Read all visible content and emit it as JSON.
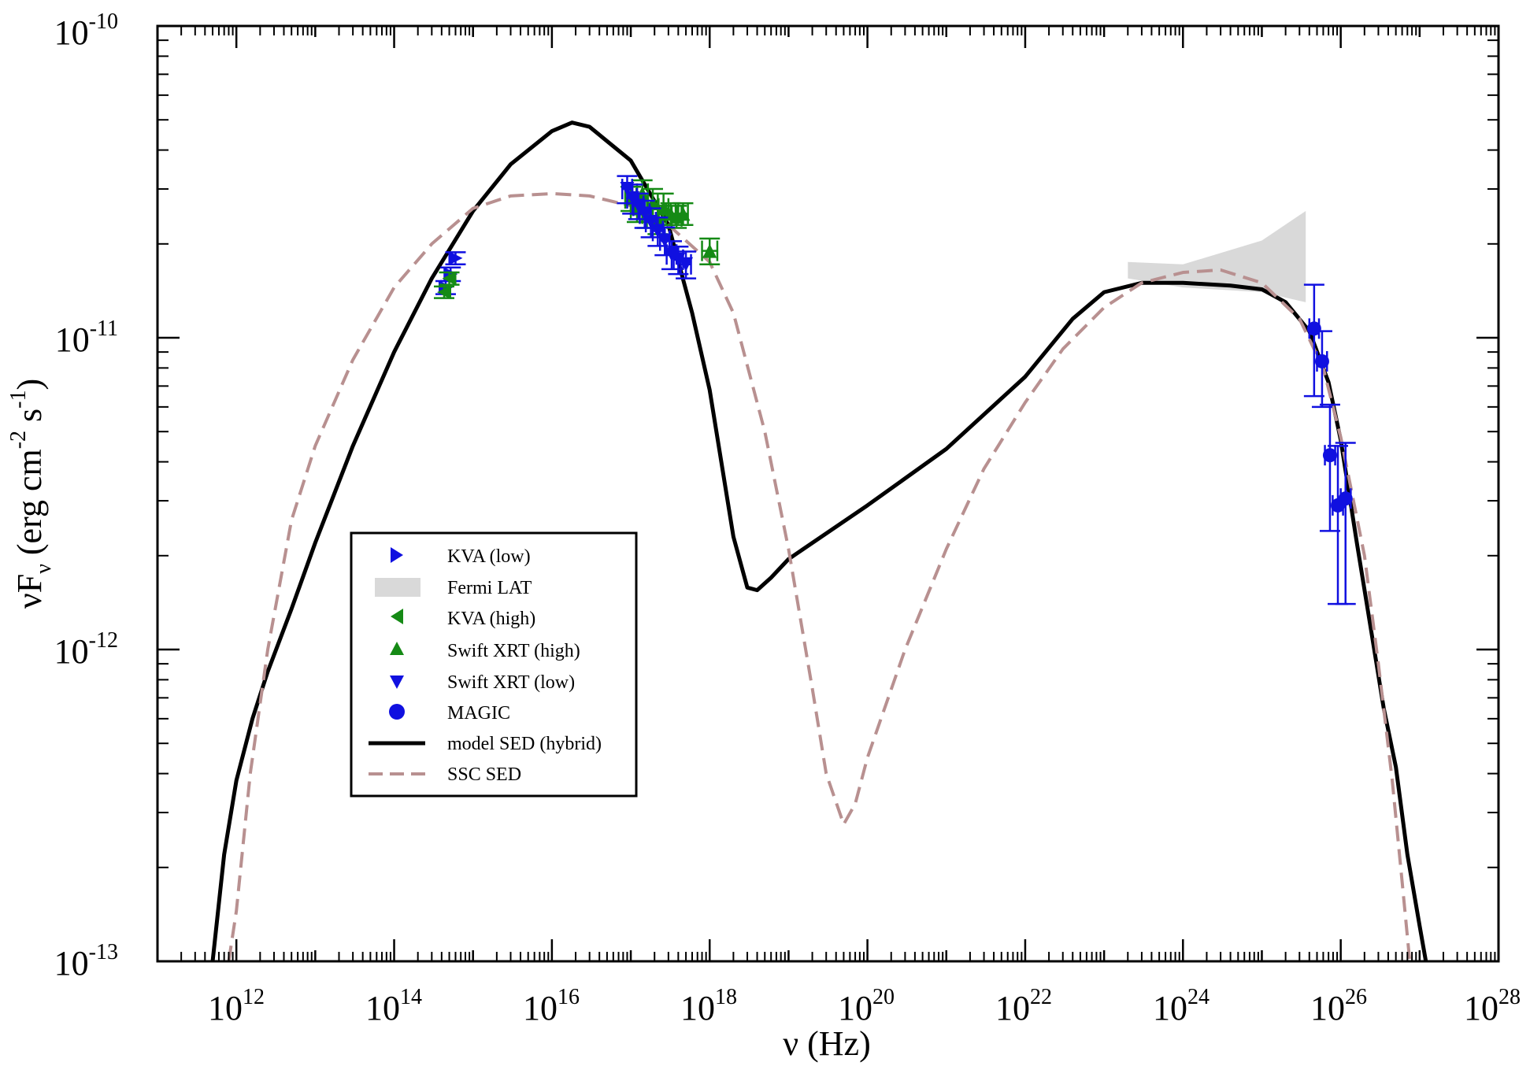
{
  "chart_data": {
    "type": "scatter",
    "xscale": "log",
    "yscale": "log",
    "xlabel": {
      "main": "ν (Hz)"
    },
    "ylabel": {
      "main": "νF",
      "sub": "ν",
      "rest": " (erg cm",
      "sup1": "-2",
      "mid": " s",
      "sup2": "-1",
      "end": ")"
    },
    "xlim": [
      100000000000.0,
      1e+28
    ],
    "ylim": [
      1e-13,
      1e-10
    ],
    "x_ticks": [
      {
        "value": 1000000000000.0,
        "base": "10",
        "exp": "12"
      },
      {
        "value": 100000000000000.0,
        "base": "10",
        "exp": "14"
      },
      {
        "value": 1e+16,
        "base": "10",
        "exp": "16"
      },
      {
        "value": 1e+18,
        "base": "10",
        "exp": "18"
      },
      {
        "value": 1e+20,
        "base": "10",
        "exp": "20"
      },
      {
        "value": 1e+22,
        "base": "10",
        "exp": "22"
      },
      {
        "value": 1e+24,
        "base": "10",
        "exp": "24"
      },
      {
        "value": 1e+26,
        "base": "10",
        "exp": "26"
      },
      {
        "value": 1e+28,
        "base": "10",
        "exp": "28"
      }
    ],
    "y_ticks": [
      {
        "value": 1e-13,
        "base": "10",
        "exp": "-13"
      },
      {
        "value": 1e-12,
        "base": "10",
        "exp": "-12"
      },
      {
        "value": 1e-11,
        "base": "10",
        "exp": "-11"
      },
      {
        "value": 1e-10,
        "base": "10",
        "exp": "-10"
      }
    ],
    "grid": false,
    "legend_position": "lower-left",
    "legend": [
      {
        "label": "KVA (low)",
        "symbol": "triangle-right",
        "color": "#1010e0"
      },
      {
        "label": "Fermi LAT",
        "symbol": "band",
        "color": "#d9d9d9"
      },
      {
        "label": "KVA (high)",
        "symbol": "triangle-left",
        "color": "#158a15"
      },
      {
        "label": "Swift XRT (high)",
        "symbol": "triangle-up",
        "color": "#158a15"
      },
      {
        "label": "Swift XRT (low)",
        "symbol": "triangle-down",
        "color": "#1010e0"
      },
      {
        "label": "MAGIC",
        "symbol": "circle",
        "color": "#1010e0"
      },
      {
        "label": "model SED (hybrid)",
        "symbol": "solid-line",
        "color": "#000000"
      },
      {
        "label": "SSC SED",
        "symbol": "dashed-line",
        "color": "#b89090"
      }
    ],
    "series": [
      {
        "name": "KVA (low)",
        "symbol": "triangle-right",
        "color": "#1010e0",
        "points": [
          {
            "x": 600000000000000.0,
            "y": 1.8e-11,
            "yerr": [
              1.72e-11,
              1.88e-11
            ]
          },
          {
            "x": 520000000000000.0,
            "y": 1.6e-11,
            "yerr": [
              1.52e-11,
              1.68e-11
            ]
          },
          {
            "x": 450000000000000.0,
            "y": 1.45e-11,
            "yerr": [
              1.38e-11,
              1.52e-11
            ]
          }
        ]
      },
      {
        "name": "KVA (high)",
        "symbol": "triangle-left",
        "color": "#158a15",
        "points": [
          {
            "x": 500000000000000.0,
            "y": 1.55e-11,
            "yerr": [
              1.48e-11,
              1.62e-11
            ]
          },
          {
            "x": 430000000000000.0,
            "y": 1.4e-11,
            "yerr": [
              1.34e-11,
              1.46e-11
            ]
          }
        ]
      },
      {
        "name": "Swift XRT (high)",
        "symbol": "triangle-up",
        "color": "#158a15",
        "points": [
          {
            "x": 1e+17,
            "y": 2.8e-11,
            "xerr": [
              8.5e+16,
              1.18e+17
            ],
            "yerr": [
              2.55e-11,
              3.05e-11
            ]
          },
          {
            "x": 1.2e+17,
            "y": 2.6e-11,
            "xerr": [
              1e+17,
              1.4e+17
            ],
            "yerr": [
              2.35e-11,
              2.85e-11
            ]
          },
          {
            "x": 1.4e+17,
            "y": 2.9e-11,
            "xerr": [
              1.2e+17,
              1.65e+17
            ],
            "yerr": [
              2.6e-11,
              3.2e-11
            ]
          },
          {
            "x": 1.6e+17,
            "y": 2.5e-11,
            "xerr": [
              1.4e+17,
              1.85e+17
            ],
            "yerr": [
              2.25e-11,
              2.75e-11
            ]
          },
          {
            "x": 1.9e+17,
            "y": 2.7e-11,
            "xerr": [
              1.65e+17,
              2.2e+17
            ],
            "yerr": [
              2.4e-11,
              3e-11
            ]
          },
          {
            "x": 2.2e+17,
            "y": 2.4e-11,
            "xerr": [
              1.9e+17,
              2.55e+17
            ],
            "yerr": [
              2.15e-11,
              2.65e-11
            ]
          },
          {
            "x": 2.6e+17,
            "y": 2.6e-11,
            "xerr": [
              2.25e+17,
              3e+17
            ],
            "yerr": [
              2.3e-11,
              2.9e-11
            ]
          },
          {
            "x": 3.2e+17,
            "y": 2.5e-11,
            "xerr": [
              2.8e+17,
              3.7e+17
            ],
            "yerr": [
              2.3e-11,
              2.7e-11
            ]
          },
          {
            "x": 3.8e+17,
            "y": 2.45e-11,
            "xerr": [
              3.3e+17,
              4.4e+17
            ],
            "yerr": [
              2.25e-11,
              2.65e-11
            ]
          },
          {
            "x": 4.6e+17,
            "y": 2.5e-11,
            "xerr": [
              4e+17,
              5.3e+17
            ],
            "yerr": [
              2.3e-11,
              2.7e-11
            ]
          },
          {
            "x": 1e+18,
            "y": 1.9e-11,
            "xerr": [
              8e+17,
              1.25e+18
            ],
            "yerr": [
              1.72e-11,
              2.08e-11
            ]
          }
        ]
      },
      {
        "name": "Swift XRT (low)",
        "symbol": "triangle-down",
        "color": "#1010e0",
        "points": [
          {
            "x": 9e+16,
            "y": 3e-11,
            "xerr": [
              7.8e+16,
              1.04e+17
            ],
            "yerr": [
              2.7e-11,
              3.3e-11
            ]
          },
          {
            "x": 1.05e+17,
            "y": 2.8e-11,
            "xerr": [
              9e+16,
              1.2e+17
            ],
            "yerr": [
              2.5e-11,
              3.1e-11
            ]
          },
          {
            "x": 1.25e+17,
            "y": 2.65e-11,
            "xerr": [
              1.08e+17,
              1.45e+17
            ],
            "yerr": [
              2.4e-11,
              2.9e-11
            ]
          },
          {
            "x": 1.5e+17,
            "y": 2.5e-11,
            "xerr": [
              1.3e+17,
              1.73e+17
            ],
            "yerr": [
              2.25e-11,
              2.75e-11
            ]
          },
          {
            "x": 1.8e+17,
            "y": 2.35e-11,
            "xerr": [
              1.55e+17,
              2.08e+17
            ],
            "yerr": [
              2.1e-11,
              2.6e-11
            ]
          },
          {
            "x": 2.2e+17,
            "y": 2.2e-11,
            "xerr": [
              1.9e+17,
              2.55e+17
            ],
            "yerr": [
              1.97e-11,
              2.43e-11
            ]
          },
          {
            "x": 2.7e+17,
            "y": 2.05e-11,
            "xerr": [
              2.35e+17,
              3.1e+17
            ],
            "yerr": [
              1.84e-11,
              2.26e-11
            ]
          },
          {
            "x": 3.3e+17,
            "y": 1.85e-11,
            "xerr": [
              2.85e+17,
              3.8e+17
            ],
            "yerr": [
              1.66e-11,
              2.04e-11
            ]
          },
          {
            "x": 4e+17,
            "y": 1.78e-11,
            "xerr": [
              3.5e+17,
              4.6e+17
            ],
            "yerr": [
              1.6e-11,
              1.96e-11
            ]
          },
          {
            "x": 5e+17,
            "y": 1.72e-11,
            "xerr": [
              4.3e+17,
              5.8e+17
            ],
            "yerr": [
              1.55e-11,
              1.89e-11
            ]
          }
        ]
      },
      {
        "name": "MAGIC",
        "symbol": "circle",
        "color": "#1010e0",
        "points": [
          {
            "x": 4.6e+25,
            "y": 1.07e-11,
            "xerr": [
              4e+25,
              5.3e+25
            ],
            "yerr": [
              6.5e-12,
              1.48e-11
            ]
          },
          {
            "x": 5.8e+25,
            "y": 8.4e-12,
            "xerr": [
              5e+25,
              6.7e+25
            ],
            "yerr": [
              6e-12,
              1.05e-11
            ]
          },
          {
            "x": 7.3e+25,
            "y": 4.2e-12,
            "xerr": [
              6.3e+25,
              8.5e+25
            ],
            "yerr": [
              2.4e-12,
              6.1e-12
            ]
          },
          {
            "x": 9.2e+25,
            "y": 2.9e-12,
            "xerr": [
              7.9e+25,
              1.07e+26
            ],
            "yerr": [
              1.4e-12,
              4.5e-12
            ]
          },
          {
            "x": 1.15e+26,
            "y": 3.05e-12,
            "xerr": [
              1e+26,
              1.34e+26
            ],
            "yerr": [
              1.4e-12,
              4.6e-12
            ]
          }
        ]
      }
    ],
    "fermi_lat_band": {
      "name": "Fermi LAT",
      "color": "#d9d9d9",
      "x": [
        2e+23,
        1e+24,
        1e+25,
        3.6e+25
      ],
      "y_low": [
        1.55e-11,
        1.45e-11,
        1.4e-11,
        1.3e-11
      ],
      "y_high": [
        1.75e-11,
        1.72e-11,
        2.05e-11,
        2.55e-11
      ]
    },
    "curves": [
      {
        "name": "model SED (hybrid)",
        "style": "solid",
        "color": "#000000",
        "points": [
          [
            500000000000.0,
            1e-13
          ],
          [
            700000000000.0,
            2.2e-13
          ],
          [
            1000000000000.0,
            3.8e-13
          ],
          [
            1600000000000.0,
            6e-13
          ],
          [
            2500000000000.0,
            8.5e-13
          ],
          [
            5000000000000.0,
            1.35e-12
          ],
          [
            10000000000000.0,
            2.2e-12
          ],
          [
            30000000000000.0,
            4.5e-12
          ],
          [
            100000000000000.0,
            9e-12
          ],
          [
            300000000000000.0,
            1.55e-11
          ],
          [
            1000000000000000.0,
            2.55e-11
          ],
          [
            3000000000000000.0,
            3.6e-11
          ],
          [
            1e+16,
            4.6e-11
          ],
          [
            1.8e+16,
            4.9e-11
          ],
          [
            3e+16,
            4.75e-11
          ],
          [
            1e+17,
            3.7e-11
          ],
          [
            3e+17,
            2.3e-11
          ],
          [
            6e+17,
            1.2e-11
          ],
          [
            1e+18,
            6.8e-12
          ],
          [
            2e+18,
            2.3e-12
          ],
          [
            3e+18,
            1.58e-12
          ],
          [
            4e+18,
            1.55e-12
          ],
          [
            6e+18,
            1.7e-12
          ],
          [
            1e+19,
            1.95e-12
          ],
          [
            1e+20,
            2.9e-12
          ],
          [
            1e+21,
            4.4e-12
          ],
          [
            1e+22,
            7.5e-12
          ],
          [
            4e+22,
            1.15e-11
          ],
          [
            1e+23,
            1.4e-11
          ],
          [
            3e+23,
            1.5e-11
          ],
          [
            1e+24,
            1.5e-11
          ],
          [
            4e+24,
            1.47e-11
          ],
          [
            1e+25,
            1.43e-11
          ],
          [
            2e+25,
            1.3e-11
          ],
          [
            4e+25,
            1.05e-11
          ],
          [
            7e+25,
            7.2e-12
          ],
          [
            1e+26,
            4.7e-12
          ],
          [
            1.6e+26,
            2.2e-12
          ],
          [
            2.5e+26,
            1.1e-12
          ],
          [
            3.5e+26,
            6.5e-13
          ],
          [
            5e+26,
            4.2e-13
          ],
          [
            7e+26,
            2.2e-13
          ],
          [
            1e+27,
            1.3e-13
          ],
          [
            1.2e+27,
            1e-13
          ]
        ]
      },
      {
        "name": "SSC SED",
        "style": "dashed",
        "color": "#b89090",
        "points": [
          [
            800000000000.0,
            1e-13
          ],
          [
            1000000000000.0,
            1.45e-13
          ],
          [
            1500000000000.0,
            4e-13
          ],
          [
            2500000000000.0,
            1e-12
          ],
          [
            5000000000000.0,
            2.6e-12
          ],
          [
            10000000000000.0,
            4.5e-12
          ],
          [
            30000000000000.0,
            8.5e-12
          ],
          [
            100000000000000.0,
            1.45e-11
          ],
          [
            300000000000000.0,
            2e-11
          ],
          [
            1000000000000000.0,
            2.6e-11
          ],
          [
            3000000000000000.0,
            2.85e-11
          ],
          [
            1e+16,
            2.9e-11
          ],
          [
            3e+16,
            2.85e-11
          ],
          [
            1e+17,
            2.65e-11
          ],
          [
            3e+17,
            2.3e-11
          ],
          [
            1e+18,
            1.75e-11
          ],
          [
            2e+18,
            1.2e-11
          ],
          [
            5e+18,
            5e-12
          ],
          [
            1e+19,
            2.1e-12
          ],
          [
            2e+19,
            7.5e-13
          ],
          [
            3e+19,
            4e-13
          ],
          [
            5e+19,
            2.75e-13
          ],
          [
            7e+19,
            3.2e-13
          ],
          [
            1e+20,
            4.5e-13
          ],
          [
            3e+20,
            1e-12
          ],
          [
            1e+21,
            2.1e-12
          ],
          [
            3e+21,
            3.8e-12
          ],
          [
            1e+22,
            6.2e-12
          ],
          [
            3e+22,
            9.2e-12
          ],
          [
            1e+23,
            1.25e-11
          ],
          [
            3e+23,
            1.5e-11
          ],
          [
            1e+24,
            1.62e-11
          ],
          [
            3e+24,
            1.65e-11
          ],
          [
            1e+25,
            1.5e-11
          ],
          [
            3e+25,
            1.15e-11
          ],
          [
            6e+25,
            8e-12
          ],
          [
            1e+26,
            4.8e-12
          ],
          [
            2e+26,
            2e-12
          ],
          [
            3e+26,
            9e-13
          ],
          [
            4.5e+26,
            3.8e-13
          ],
          [
            6e+26,
            1.8e-13
          ],
          [
            7.5e+26,
            1e-13
          ]
        ]
      }
    ]
  }
}
